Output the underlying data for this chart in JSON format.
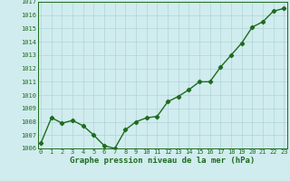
{
  "x": [
    0,
    1,
    2,
    3,
    4,
    5,
    6,
    7,
    8,
    9,
    10,
    11,
    12,
    13,
    14,
    15,
    16,
    17,
    18,
    19,
    20,
    21,
    22,
    23
  ],
  "y": [
    1006.4,
    1008.3,
    1007.9,
    1008.1,
    1007.7,
    1007.0,
    1006.2,
    1006.0,
    1007.4,
    1008.0,
    1008.3,
    1008.4,
    1009.5,
    1009.9,
    1010.4,
    1011.0,
    1011.0,
    1012.1,
    1013.0,
    1013.9,
    1015.1,
    1015.5,
    1016.3,
    1016.5
  ],
  "ylim": [
    1006,
    1017
  ],
  "yticks": [
    1006,
    1007,
    1008,
    1009,
    1010,
    1011,
    1012,
    1013,
    1014,
    1015,
    1016,
    1017
  ],
  "xticks": [
    0,
    1,
    2,
    3,
    4,
    5,
    6,
    7,
    8,
    9,
    10,
    11,
    12,
    13,
    14,
    15,
    16,
    17,
    18,
    19,
    20,
    21,
    22,
    23
  ],
  "xlabel": "Graphe pression niveau de la mer (hPa)",
  "line_color": "#1e6b1e",
  "marker": "D",
  "marker_size": 2.2,
  "line_width": 1.0,
  "bg_color": "#d0ecee",
  "grid_color": "#b0d4d6",
  "tick_fontsize": 5.0,
  "xlabel_fontsize": 6.5,
  "xlabel_color": "#1e6b1e",
  "xlim": [
    -0.3,
    23.3
  ]
}
